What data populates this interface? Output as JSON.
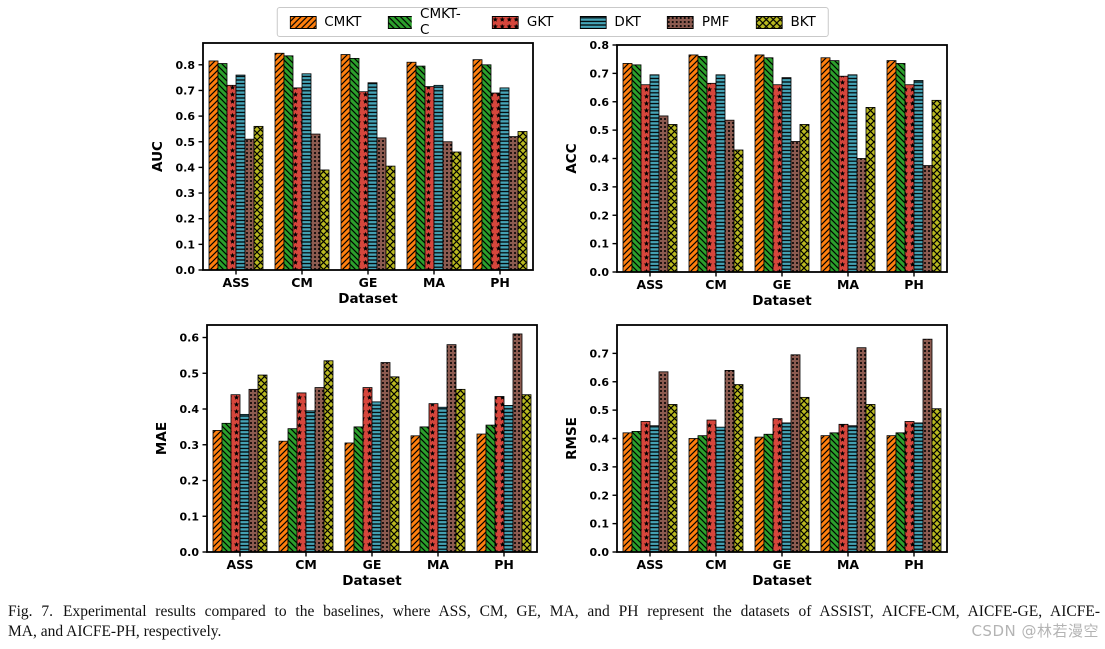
{
  "legend": {
    "items": [
      {
        "label": "CMKT",
        "color": "#ff7f0e",
        "hatch": "diag"
      },
      {
        "label": "CMKT-C",
        "color": "#2ca02c",
        "hatch": "backdiag"
      },
      {
        "label": "GKT",
        "color": "#d6463c",
        "hatch": "star"
      },
      {
        "label": "DKT",
        "color": "#46a5b8",
        "hatch": "horiz"
      },
      {
        "label": "PMF",
        "color": "#8c5b50",
        "hatch": "dot"
      },
      {
        "label": "BKT",
        "color": "#b9b920",
        "hatch": "cross"
      }
    ]
  },
  "chart_data": [
    {
      "type": "bar",
      "title": "",
      "xlabel": "Dataset",
      "ylabel": "AUC",
      "categories": [
        "ASS",
        "CM",
        "GE",
        "MA",
        "PH"
      ],
      "ylim": [
        0,
        0.885
      ],
      "ytick_step": 0.1,
      "ytick_max": 0.8,
      "grid": false,
      "legend_position": "figure-top",
      "series": [
        {
          "name": "CMKT",
          "values": [
            0.815,
            0.845,
            0.84,
            0.81,
            0.82
          ]
        },
        {
          "name": "CMKT-C",
          "values": [
            0.805,
            0.835,
            0.825,
            0.795,
            0.8
          ]
        },
        {
          "name": "GKT",
          "values": [
            0.72,
            0.71,
            0.695,
            0.715,
            0.69
          ]
        },
        {
          "name": "DKT",
          "values": [
            0.76,
            0.765,
            0.73,
            0.72,
            0.71
          ]
        },
        {
          "name": "PMF",
          "values": [
            0.51,
            0.53,
            0.515,
            0.5,
            0.52
          ]
        },
        {
          "name": "BKT",
          "values": [
            0.56,
            0.39,
            0.405,
            0.46,
            0.54
          ]
        }
      ]
    },
    {
      "type": "bar",
      "title": "",
      "xlabel": "Dataset",
      "ylabel": "ACC",
      "categories": [
        "ASS",
        "CM",
        "GE",
        "MA",
        "PH"
      ],
      "ylim": [
        0,
        0.8
      ],
      "ytick_step": 0.1,
      "ytick_max": 0.8,
      "grid": false,
      "legend_position": "figure-top",
      "series": [
        {
          "name": "CMKT",
          "values": [
            0.735,
            0.765,
            0.765,
            0.755,
            0.745
          ]
        },
        {
          "name": "CMKT-C",
          "values": [
            0.73,
            0.76,
            0.755,
            0.745,
            0.735
          ]
        },
        {
          "name": "GKT",
          "values": [
            0.66,
            0.665,
            0.66,
            0.69,
            0.66
          ]
        },
        {
          "name": "DKT",
          "values": [
            0.695,
            0.695,
            0.685,
            0.695,
            0.675
          ]
        },
        {
          "name": "PMF",
          "values": [
            0.55,
            0.535,
            0.46,
            0.4,
            0.375
          ]
        },
        {
          "name": "BKT",
          "values": [
            0.52,
            0.43,
            0.52,
            0.58,
            0.605
          ]
        }
      ]
    },
    {
      "type": "bar",
      "title": "",
      "xlabel": "Dataset",
      "ylabel": "MAE",
      "categories": [
        "ASS",
        "CM",
        "GE",
        "MA",
        "PH"
      ],
      "ylim": [
        0,
        0.635
      ],
      "ytick_step": 0.1,
      "ytick_max": 0.6,
      "grid": false,
      "legend_position": "figure-top",
      "series": [
        {
          "name": "CMKT",
          "values": [
            0.34,
            0.31,
            0.305,
            0.325,
            0.33
          ]
        },
        {
          "name": "CMKT-C",
          "values": [
            0.36,
            0.345,
            0.35,
            0.35,
            0.355
          ]
        },
        {
          "name": "GKT",
          "values": [
            0.44,
            0.445,
            0.46,
            0.415,
            0.435
          ]
        },
        {
          "name": "DKT",
          "values": [
            0.385,
            0.395,
            0.42,
            0.405,
            0.41
          ]
        },
        {
          "name": "PMF",
          "values": [
            0.455,
            0.46,
            0.53,
            0.58,
            0.61
          ]
        },
        {
          "name": "BKT",
          "values": [
            0.495,
            0.535,
            0.49,
            0.455,
            0.44
          ]
        }
      ]
    },
    {
      "type": "bar",
      "title": "",
      "xlabel": "Dataset",
      "ylabel": "RMSE",
      "categories": [
        "ASS",
        "CM",
        "GE",
        "MA",
        "PH"
      ],
      "ylim": [
        0,
        0.8
      ],
      "ytick_step": 0.1,
      "ytick_max": 0.7,
      "grid": false,
      "legend_position": "figure-top",
      "series": [
        {
          "name": "CMKT",
          "values": [
            0.42,
            0.4,
            0.405,
            0.41,
            0.41
          ]
        },
        {
          "name": "CMKT-C",
          "values": [
            0.425,
            0.41,
            0.415,
            0.42,
            0.42
          ]
        },
        {
          "name": "GKT",
          "values": [
            0.46,
            0.465,
            0.47,
            0.45,
            0.46
          ]
        },
        {
          "name": "DKT",
          "values": [
            0.445,
            0.44,
            0.455,
            0.445,
            0.455
          ]
        },
        {
          "name": "PMF",
          "values": [
            0.635,
            0.64,
            0.695,
            0.72,
            0.75
          ]
        },
        {
          "name": "BKT",
          "values": [
            0.52,
            0.59,
            0.545,
            0.52,
            0.505
          ]
        }
      ]
    }
  ],
  "caption": {
    "label": "Fig. 7.",
    "line1": "Experimental results compared to the baselines, where ASS, CM, GE, MA, and PH represent the datasets of ASSIST, AICFE-CM, AICFE-GE, AICFE-",
    "line2": "MA, and AICFE-PH, respectively."
  },
  "watermark": {
    "text": "CSDN @林若漫空"
  }
}
